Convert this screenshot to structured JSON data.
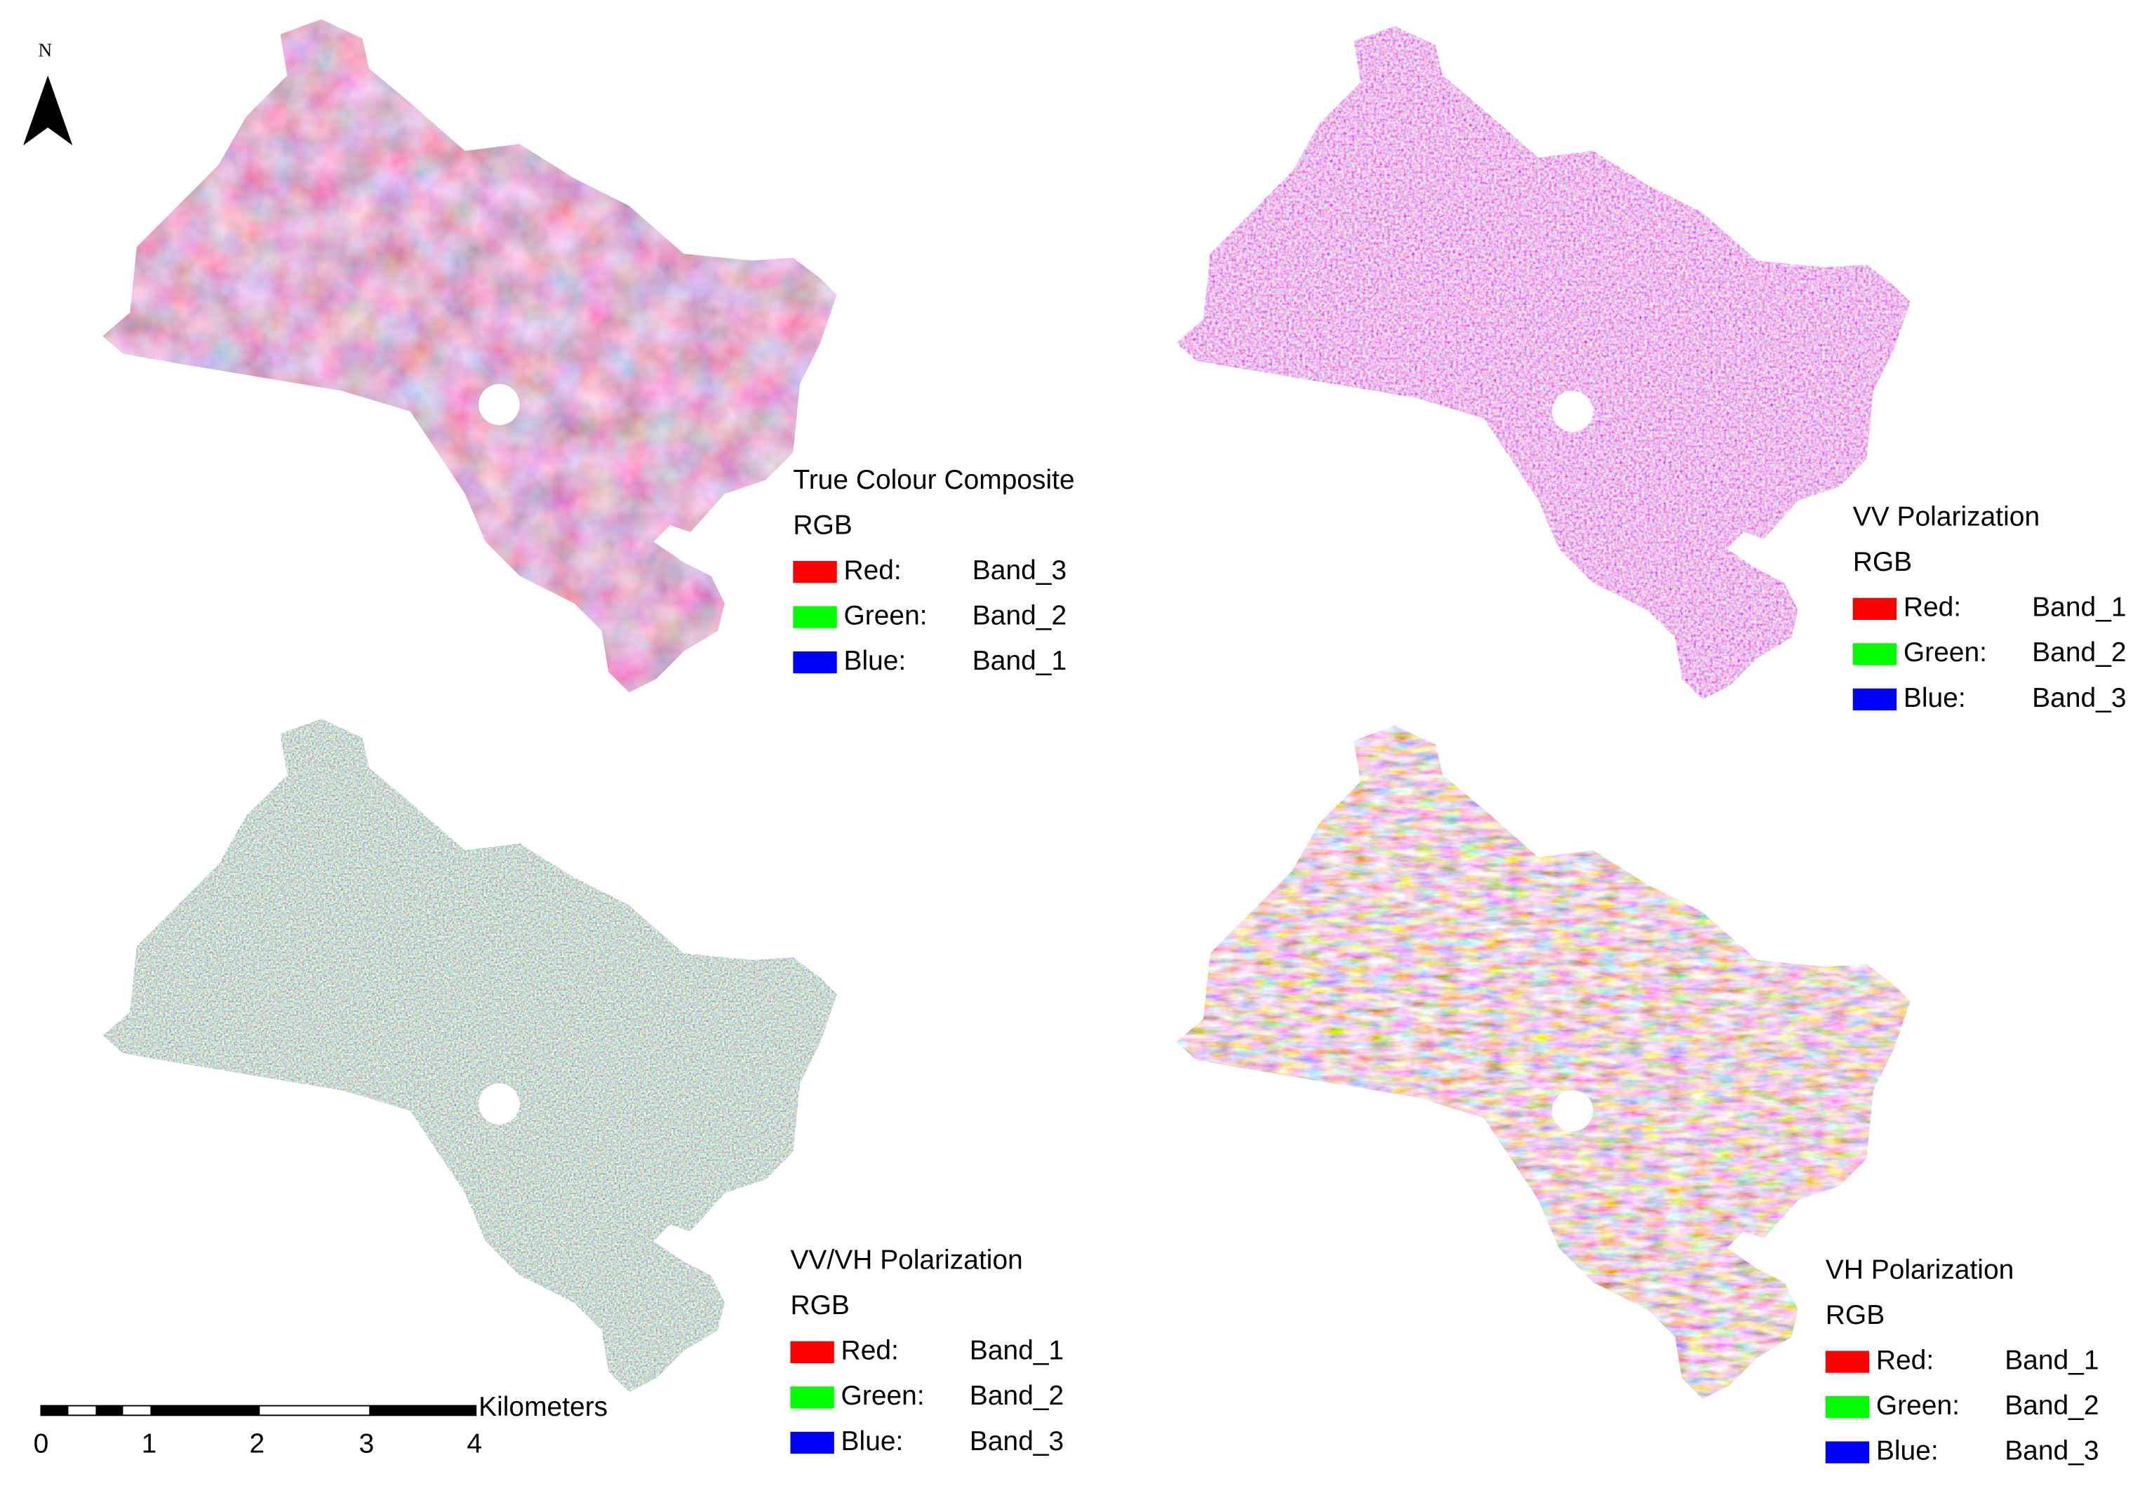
{
  "north_arrow": {
    "label": "N"
  },
  "panels": [
    {
      "title": "True Colour Composite",
      "subtitle": "RGB",
      "legend": [
        {
          "label": "Red:",
          "band": "Band_3",
          "color": "#ff0000"
        },
        {
          "label": "Green:",
          "band": "Band_2",
          "color": "#00ff00"
        },
        {
          "label": "Blue:",
          "band": "Band_1",
          "color": "#0000ff"
        }
      ]
    },
    {
      "title": "VV Polarization",
      "subtitle": "RGB",
      "legend": [
        {
          "label": "Red:",
          "band": "Band_1",
          "color": "#ff0000"
        },
        {
          "label": "Green:",
          "band": "Band_2",
          "color": "#00ff00"
        },
        {
          "label": "Blue:",
          "band": "Band_3",
          "color": "#0000ff"
        }
      ]
    },
    {
      "title": "VV/VH Polarization",
      "subtitle": "RGB",
      "legend": [
        {
          "label": "Red:",
          "band": "Band_1",
          "color": "#ff0000"
        },
        {
          "label": "Green:",
          "band": "Band_2",
          "color": "#00ff00"
        },
        {
          "label": "Blue:",
          "band": "Band_3",
          "color": "#0000ff"
        }
      ]
    },
    {
      "title": "VH Polarization",
      "subtitle": "RGB",
      "legend": [
        {
          "label": "Red:",
          "band": "Band_1",
          "color": "#ff0000"
        },
        {
          "label": "Green:",
          "band": "Band_2",
          "color": "#00ff00"
        },
        {
          "label": "Blue:",
          "band": "Band_3",
          "color": "#0000ff"
        }
      ]
    }
  ],
  "scale_bar": {
    "ticks": [
      "0",
      "1",
      "2",
      "3",
      "4"
    ],
    "unit": "Kilometers"
  }
}
